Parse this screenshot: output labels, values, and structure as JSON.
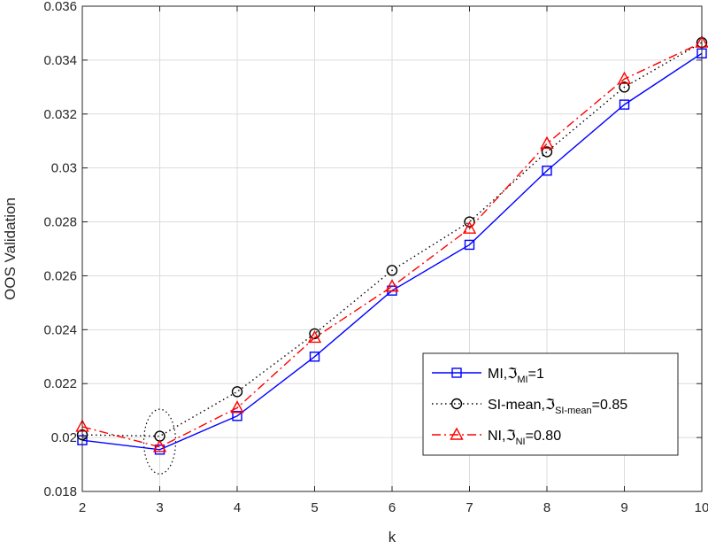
{
  "chart_data": {
    "type": "line",
    "xlabel": "k",
    "ylabel": "OOS Validation",
    "xlim": [
      2,
      10
    ],
    "ylim": [
      0.018,
      0.036
    ],
    "x": [
      2,
      3,
      4,
      5,
      6,
      7,
      8,
      9,
      10
    ],
    "x_ticks": [
      "2",
      "3",
      "4",
      "5",
      "6",
      "7",
      "8",
      "9",
      "10"
    ],
    "y_ticks": [
      0.018,
      0.02,
      0.022,
      0.024,
      0.026,
      0.028,
      0.03,
      0.032,
      0.034,
      0.036
    ],
    "y_tick_labels": [
      "0.018",
      "0.02",
      "0.022",
      "0.024",
      "0.026",
      "0.028",
      "0.03",
      "0.032",
      "0.034",
      "0.036"
    ],
    "grid": true,
    "legend_position": "bottom-right",
    "series": [
      {
        "id": "mi",
        "legend": {
          "prefix": "MI,",
          "symbol": "ℑ",
          "sub": "MI",
          "suffix": "=1"
        },
        "color": "#0000ff",
        "line": "solid",
        "marker": "square",
        "values": [
          0.0199,
          0.01955,
          0.0208,
          0.023,
          0.02545,
          0.02715,
          0.0299,
          0.03235,
          0.03425
        ]
      },
      {
        "id": "si",
        "legend": {
          "prefix": "SI-mean,",
          "symbol": "ℑ",
          "sub": "SI-mean",
          "suffix": "=0.85"
        },
        "color": "#000000",
        "line": "dotted",
        "marker": "circle",
        "values": [
          0.0201,
          0.02005,
          0.0217,
          0.02385,
          0.0262,
          0.028,
          0.0306,
          0.033,
          0.03465
        ]
      },
      {
        "id": "ni",
        "legend": {
          "prefix": "NI,",
          "symbol": "ℑ",
          "sub": "NI",
          "suffix": "=0.80"
        },
        "color": "#ff0000",
        "line": "dashdot",
        "marker": "triangle",
        "values": [
          0.0204,
          0.01965,
          0.0211,
          0.0237,
          0.0256,
          0.02775,
          0.0309,
          0.0333,
          0.03465
        ]
      }
    ],
    "annotation": {
      "shape": "dotted-ellipse",
      "x": 3,
      "y_range": [
        0.01865,
        0.02105
      ]
    }
  }
}
